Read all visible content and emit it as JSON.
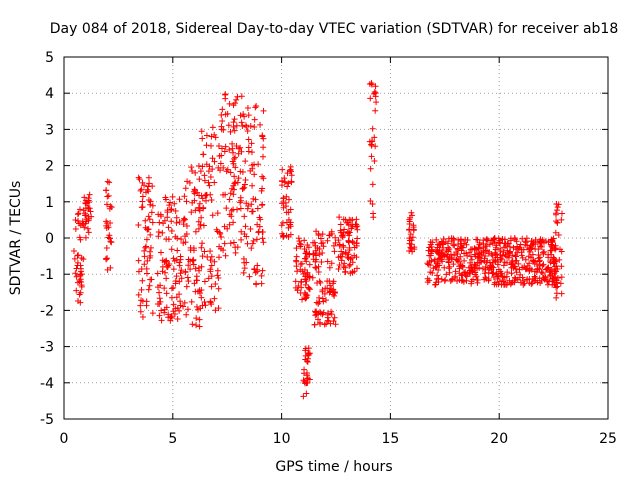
{
  "chart_data": {
    "type": "scatter",
    "title": "Day 084 of 2018, Sidereal Day-to-day VTEC variation (SDTVAR) for receiver ab18",
    "xlabel": "GPS time / hours",
    "ylabel": "SDTVAR / TECUs",
    "xlim": [
      0,
      25
    ],
    "ylim": [
      -5,
      5
    ],
    "xticks": [
      0,
      5,
      10,
      15,
      20,
      25
    ],
    "yticks": [
      -5,
      -4,
      -3,
      -2,
      -1,
      0,
      1,
      2,
      3,
      4,
      5
    ],
    "grid": true,
    "marker": "+",
    "color": "#ff0000",
    "clusters": [
      {
        "x": [
          0.45,
          0.9
        ],
        "y": [
          -1.8,
          0.8
        ]
      },
      {
        "x": [
          0.9,
          1.25
        ],
        "y": [
          0.0,
          1.2
        ]
      },
      {
        "x": [
          1.9,
          2.2
        ],
        "y": [
          -0.9,
          1.6
        ]
      },
      {
        "x": [
          3.4,
          4.1
        ],
        "y": [
          -2.2,
          1.7
        ]
      },
      {
        "x": [
          4.3,
          5.4
        ],
        "y": [
          -2.3,
          1.2
        ]
      },
      {
        "x": [
          5.4,
          6.3
        ],
        "y": [
          -2.5,
          2.0
        ]
      },
      {
        "x": [
          6.3,
          7.2
        ],
        "y": [
          -2.0,
          3.4
        ]
      },
      {
        "x": [
          7.2,
          8.2
        ],
        "y": [
          -0.5,
          4.1
        ]
      },
      {
        "x": [
          8.2,
          9.2
        ],
        "y": [
          -1.3,
          3.8
        ]
      },
      {
        "x": [
          10.0,
          10.5
        ],
        "y": [
          0.0,
          2.0
        ]
      },
      {
        "x": [
          10.6,
          11.3
        ],
        "y": [
          -1.7,
          0.0
        ]
      },
      {
        "x": [
          11.0,
          11.3
        ],
        "y": [
          -4.4,
          -2.9
        ]
      },
      {
        "x": [
          11.4,
          12.5
        ],
        "y": [
          -2.4,
          0.2
        ]
      },
      {
        "x": [
          12.6,
          13.5
        ],
        "y": [
          -1.0,
          0.6
        ]
      },
      {
        "x": [
          14.05,
          14.35
        ],
        "y": [
          0.5,
          4.8
        ]
      },
      {
        "x": [
          15.85,
          16.1
        ],
        "y": [
          -0.6,
          0.7
        ]
      },
      {
        "x": [
          16.7,
          22.7
        ],
        "y": [
          -1.3,
          0.0
        ]
      },
      {
        "x": [
          22.6,
          22.9
        ],
        "y": [
          -1.7,
          1.1
        ]
      }
    ]
  }
}
